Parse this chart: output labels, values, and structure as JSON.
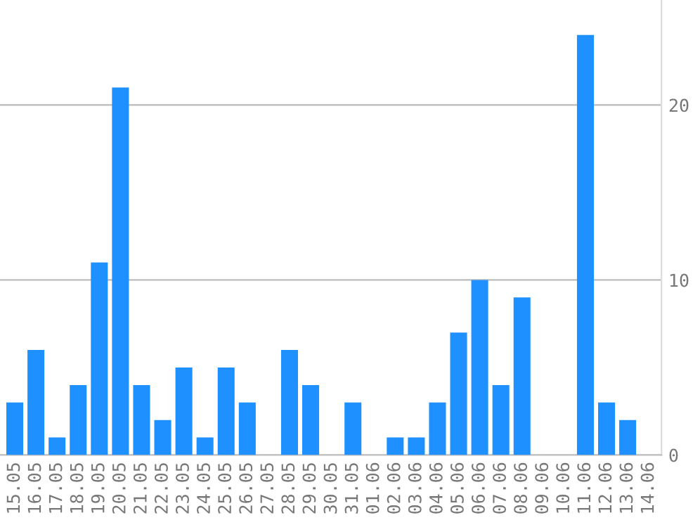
{
  "chart_data": {
    "type": "bar",
    "categories": [
      "15.05",
      "16.05",
      "17.05",
      "18.05",
      "19.05",
      "20.05",
      "21.05",
      "22.05",
      "23.05",
      "24.05",
      "25.05",
      "26.05",
      "27.05",
      "28.05",
      "29.05",
      "30.05",
      "31.05",
      "01.06",
      "02.06",
      "03.06",
      "04.06",
      "05.06",
      "06.06",
      "07.06",
      "08.06",
      "09.06",
      "10.06",
      "11.06",
      "12.06",
      "13.06",
      "14.06"
    ],
    "values": [
      3,
      6,
      1,
      4,
      11,
      21,
      4,
      2,
      5,
      1,
      5,
      3,
      0,
      6,
      4,
      0,
      3,
      0,
      1,
      1,
      3,
      7,
      10,
      4,
      9,
      0,
      0,
      24,
      3,
      2,
      0
    ],
    "color": "#1e90ff",
    "ylim": [
      0,
      26
    ],
    "yticks": [
      0,
      10,
      20
    ],
    "grid": "y"
  }
}
